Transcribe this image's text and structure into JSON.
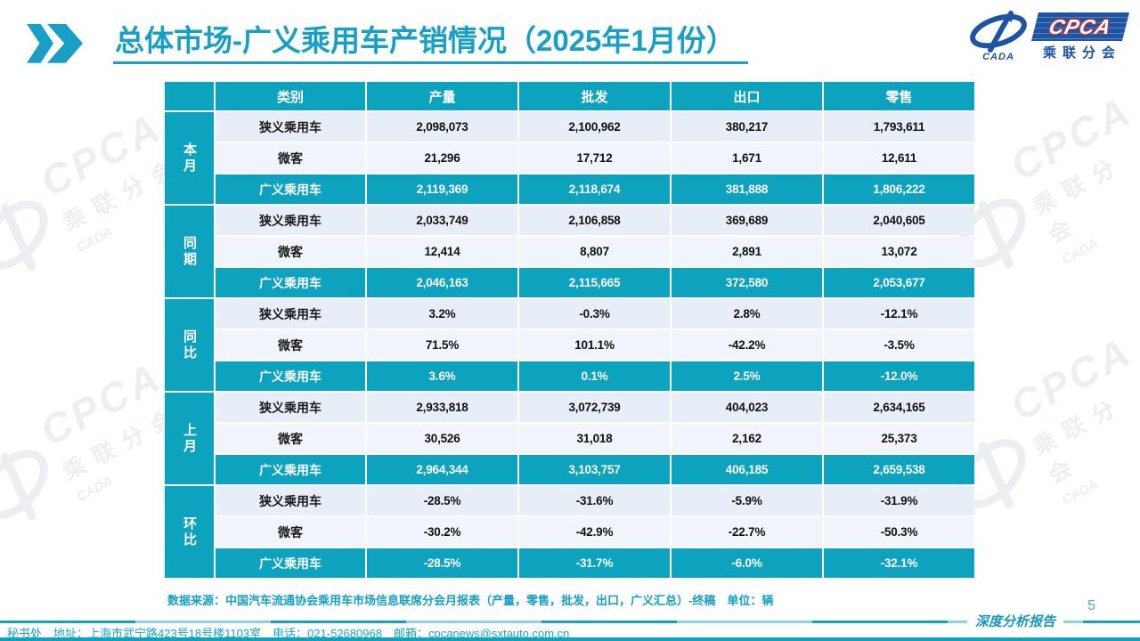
{
  "colors": {
    "teal": "#0DA3BE",
    "title_teal": "#189FC6",
    "row_light": "#E8EEF7",
    "row_lighter": "#F1F4FB",
    "logo_blue": "#1E54A4",
    "logo_red": "#CE2F2F",
    "page_number_blue": "#4BA5D6"
  },
  "header": {
    "title": "总体市场-广义乘用车产销情况（2025年1月份）",
    "logo": {
      "cpca": "CPCA",
      "subtitle": "乘联分会",
      "cada": "CADA"
    }
  },
  "table": {
    "columns": [
      "类别",
      "产量",
      "批发",
      "出口",
      "零售"
    ],
    "groups": [
      {
        "label": "本月",
        "rows": [
          {
            "category": "狭义乘用车",
            "values": [
              "2,098,073",
              "2,100,962",
              "380,217",
              "1,793,611"
            ],
            "highlight": false
          },
          {
            "category": "微客",
            "values": [
              "21,296",
              "17,712",
              "1,671",
              "12,611"
            ],
            "highlight": false
          },
          {
            "category": "广义乘用车",
            "values": [
              "2,119,369",
              "2,118,674",
              "381,888",
              "1,806,222"
            ],
            "highlight": true
          }
        ]
      },
      {
        "label": "同期",
        "rows": [
          {
            "category": "狭义乘用车",
            "values": [
              "2,033,749",
              "2,106,858",
              "369,689",
              "2,040,605"
            ],
            "highlight": false
          },
          {
            "category": "微客",
            "values": [
              "12,414",
              "8,807",
              "2,891",
              "13,072"
            ],
            "highlight": false
          },
          {
            "category": "广义乘用车",
            "values": [
              "2,046,163",
              "2,115,665",
              "372,580",
              "2,053,677"
            ],
            "highlight": true
          }
        ]
      },
      {
        "label": "同比",
        "rows": [
          {
            "category": "狭义乘用车",
            "values": [
              "3.2%",
              "-0.3%",
              "2.8%",
              "-12.1%"
            ],
            "highlight": false
          },
          {
            "category": "微客",
            "values": [
              "71.5%",
              "101.1%",
              "-42.2%",
              "-3.5%"
            ],
            "highlight": false
          },
          {
            "category": "广义乘用车",
            "values": [
              "3.6%",
              "0.1%",
              "2.5%",
              "-12.0%"
            ],
            "highlight": true
          }
        ]
      },
      {
        "label": "上月",
        "rows": [
          {
            "category": "狭义乘用车",
            "values": [
              "2,933,818",
              "3,072,739",
              "404,023",
              "2,634,165"
            ],
            "highlight": false
          },
          {
            "category": "微客",
            "values": [
              "30,526",
              "31,018",
              "2,162",
              "25,373"
            ],
            "highlight": false
          },
          {
            "category": "广义乘用车",
            "values": [
              "2,964,344",
              "3,103,757",
              "406,185",
              "2,659,538"
            ],
            "highlight": true
          }
        ]
      },
      {
        "label": "环比",
        "rows": [
          {
            "category": "狭义乘用车",
            "values": [
              "-28.5%",
              "-31.6%",
              "-5.9%",
              "-31.9%"
            ],
            "highlight": false
          },
          {
            "category": "微客",
            "values": [
              "-30.2%",
              "-42.9%",
              "-22.7%",
              "-50.3%"
            ],
            "highlight": false
          },
          {
            "category": "广义乘用车",
            "values": [
              "-28.5%",
              "-31.7%",
              "-6.0%",
              "-32.1%"
            ],
            "highlight": true
          }
        ]
      }
    ]
  },
  "source_note": "数据来源：中国汽车流通协会乘用车市场信息联席分会月报表（产量，零售，批发，出口，广义汇总）-终稿　单位：辆",
  "footer": {
    "report_label": "深度分析报告",
    "page_number": "5",
    "contact": "秘书处　地址：上海市武宁路423号18号楼1103室　电话：021-52680968　邮箱：cpcanews@sxtauto.com.cn"
  },
  "watermark": {
    "cpca": "CPCA",
    "subtitle": "乘联分会",
    "cada": "CADA"
  }
}
